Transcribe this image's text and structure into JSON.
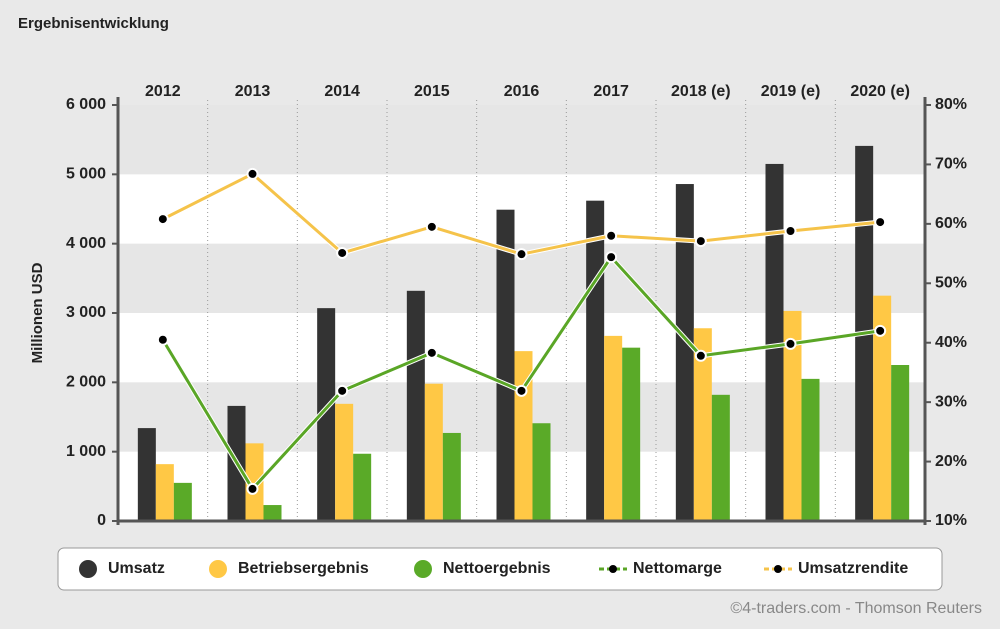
{
  "chart_data": {
    "type": "bar-line",
    "title": "Ergebnisentwicklung",
    "y_label": "Millionen USD",
    "source": "©4-traders.com - Thomson Reuters",
    "categories": [
      "2012",
      "2013",
      "2014",
      "2015",
      "2016",
      "2017",
      "2018 (e)",
      "2019 (e)",
      "2020 (e)"
    ],
    "series": [
      {
        "name": "Umsatz",
        "type": "bar",
        "color": "#333333",
        "values": [
          1340,
          1660,
          3070,
          3320,
          4490,
          4620,
          4860,
          5150,
          5410
        ]
      },
      {
        "name": "Betriebsergebnis",
        "type": "bar",
        "color": "#ffc845",
        "values": [
          820,
          1120,
          1690,
          1980,
          2450,
          2670,
          2780,
          3030,
          3250
        ]
      },
      {
        "name": "Nettoergebnis",
        "type": "bar",
        "color": "#5aaa28",
        "values": [
          550,
          230,
          970,
          1270,
          1410,
          2500,
          1820,
          2050,
          2250
        ]
      },
      {
        "name": "Nettomarge",
        "type": "line",
        "axis": "y2",
        "color": "#5aa626",
        "values": [
          40.5,
          15.4,
          31.9,
          38.3,
          31.9,
          54.4,
          37.8,
          39.8,
          42.0
        ]
      },
      {
        "name": "Umsatzrendite",
        "type": "line",
        "axis": "y2",
        "color": "#f5c34a",
        "values": [
          60.8,
          68.4,
          55.1,
          59.5,
          54.9,
          58.0,
          57.1,
          58.8,
          60.3
        ]
      }
    ],
    "ylim": [
      0,
      6000
    ],
    "yticks": [
      0,
      {
        "value": 1000,
        "label": "1 000"
      },
      {
        "value": 2000,
        "label": "2 000"
      },
      {
        "value": 3000,
        "label": "3 000"
      },
      {
        "value": 4000,
        "label": "4 000"
      },
      {
        "value": 5000,
        "label": "5 000"
      },
      {
        "value": 6000,
        "label": "6 000"
      }
    ],
    "y2lim": [
      10,
      80
    ],
    "y2ticks": [
      {
        "value": 10,
        "label": "10%"
      },
      {
        "value": 20,
        "label": "20%"
      },
      {
        "value": 30,
        "label": "30%"
      },
      {
        "value": 40,
        "label": "40%"
      },
      {
        "value": 50,
        "label": "50%"
      },
      {
        "value": 60,
        "label": "60%"
      },
      {
        "value": 70,
        "label": "70%"
      },
      {
        "value": 80,
        "label": "80%"
      }
    ],
    "grid": true,
    "legend": "bottom"
  }
}
